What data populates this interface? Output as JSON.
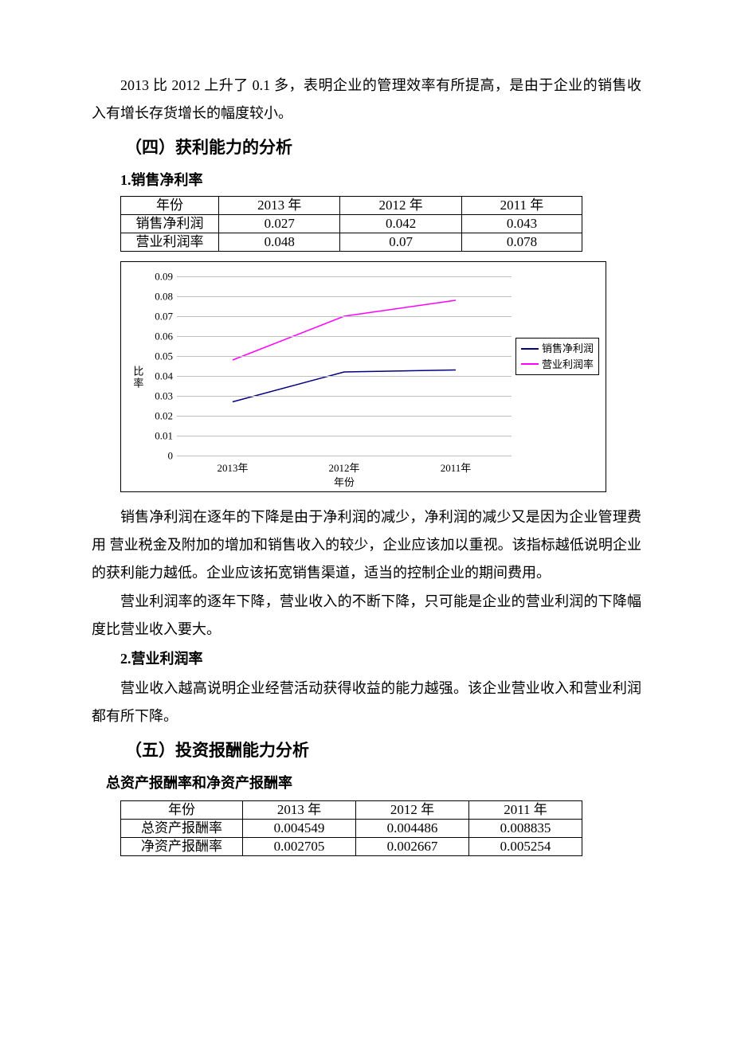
{
  "intro_para": "2013 比 2012 上升了 0.1 多，表明企业的管理效率有所提高，是由于企业的销售收入有增长存货增长的幅度较小。",
  "section4": {
    "heading": "（四）获利能力的分析",
    "sub1_heading": "1.销售净利率",
    "table1": {
      "col0": "年份",
      "col1": "2013 年",
      "col2": "2012 年",
      "col3": "2011 年",
      "row1": {
        "label": "销售净利润",
        "c1": "0.027",
        "c2": "0.042",
        "c3": "0.043"
      },
      "row2": {
        "label": "营业利润率",
        "c1": "0.048",
        "c2": "0.07",
        "c3": "0.078"
      }
    },
    "chart": {
      "y_axis_label": "比率",
      "x_axis_title": "年份",
      "x_categories": [
        "2013年",
        "2012年",
        "2011年"
      ],
      "y_max": 0.09,
      "y_ticks": [
        0,
        0.01,
        0.02,
        0.03,
        0.04,
        0.05,
        0.06,
        0.07,
        0.08,
        0.09
      ],
      "series": [
        {
          "name": "销售净利润",
          "color": "#000080",
          "values": [
            0.027,
            0.042,
            0.043
          ]
        },
        {
          "name": "营业利润率",
          "color": "#ff00ff",
          "values": [
            0.048,
            0.07,
            0.078
          ]
        }
      ],
      "grid_color": "#c0c0c0"
    },
    "para_after_chart_1": "销售净利润在逐年的下降是由于净利润的减少，净利润的减少又是因为企业管理费用 营业税金及附加的增加和销售收入的较少，企业应该加以重视。该指标越低说明企业的获利能力越低。企业应该拓宽销售渠道，适当的控制企业的期间费用。",
    "para_after_chart_2": "营业利润率的逐年下降，营业收入的不断下降，只可能是企业的营业利润的下降幅度比营业收入要大。",
    "sub2_heading": "2.营业利润率",
    "sub2_para": "营业收入越高说明企业经营活动获得收益的能力越强。该企业营业收入和营业利润都有所下降。"
  },
  "section5": {
    "heading": "（五）投资报酬能力分析",
    "sub_heading": "总资产报酬率和净资产报酬率",
    "table": {
      "col0": "年份",
      "col1": "2013 年",
      "col2": "2012 年",
      "col3": "2011 年",
      "row1": {
        "label": "总资产报酬率",
        "c1": "0.004549",
        "c2": "0.004486",
        "c3": "0.008835"
      },
      "row2": {
        "label": "净资产报酬率",
        "c1": "0.002705",
        "c2": "0.002667",
        "c3": "0.005254"
      }
    }
  }
}
